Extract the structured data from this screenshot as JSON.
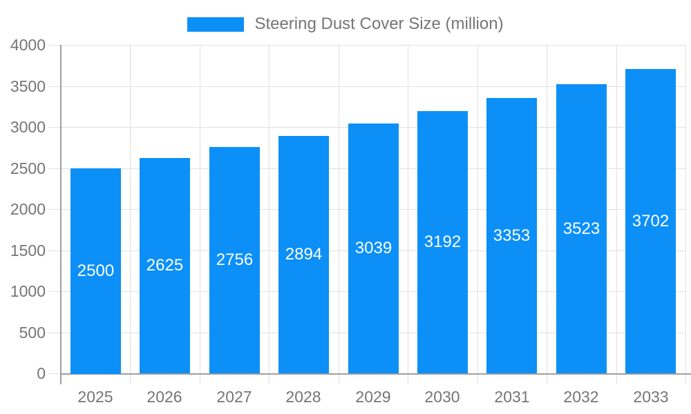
{
  "chart_data": {
    "type": "bar",
    "title": "Steering Dust Cover Size (million)",
    "categories": [
      "2025",
      "2026",
      "2027",
      "2028",
      "2029",
      "2030",
      "2031",
      "2032",
      "2033"
    ],
    "series": [
      {
        "name": "Steering Dust Cover Size (million)",
        "values": [
          2500,
          2625,
          2756,
          2894,
          3039,
          3192,
          3353,
          3523,
          3702
        ]
      }
    ],
    "value_labels_shown": true,
    "xlabel": "",
    "ylabel": "",
    "ylim": [
      0,
      4000
    ],
    "ytick_interval": 500,
    "yticks": [
      0,
      500,
      1000,
      1500,
      2000,
      2500,
      3000,
      3500,
      4000
    ],
    "grid": true,
    "legend_position": "top"
  },
  "colors": {
    "bar": "#0C90F8",
    "grid": "#E0E0E0",
    "axis": "#9E9E9E",
    "text": "#757575",
    "value_label": "#FFFFFF",
    "background": "#FFFFFF"
  }
}
